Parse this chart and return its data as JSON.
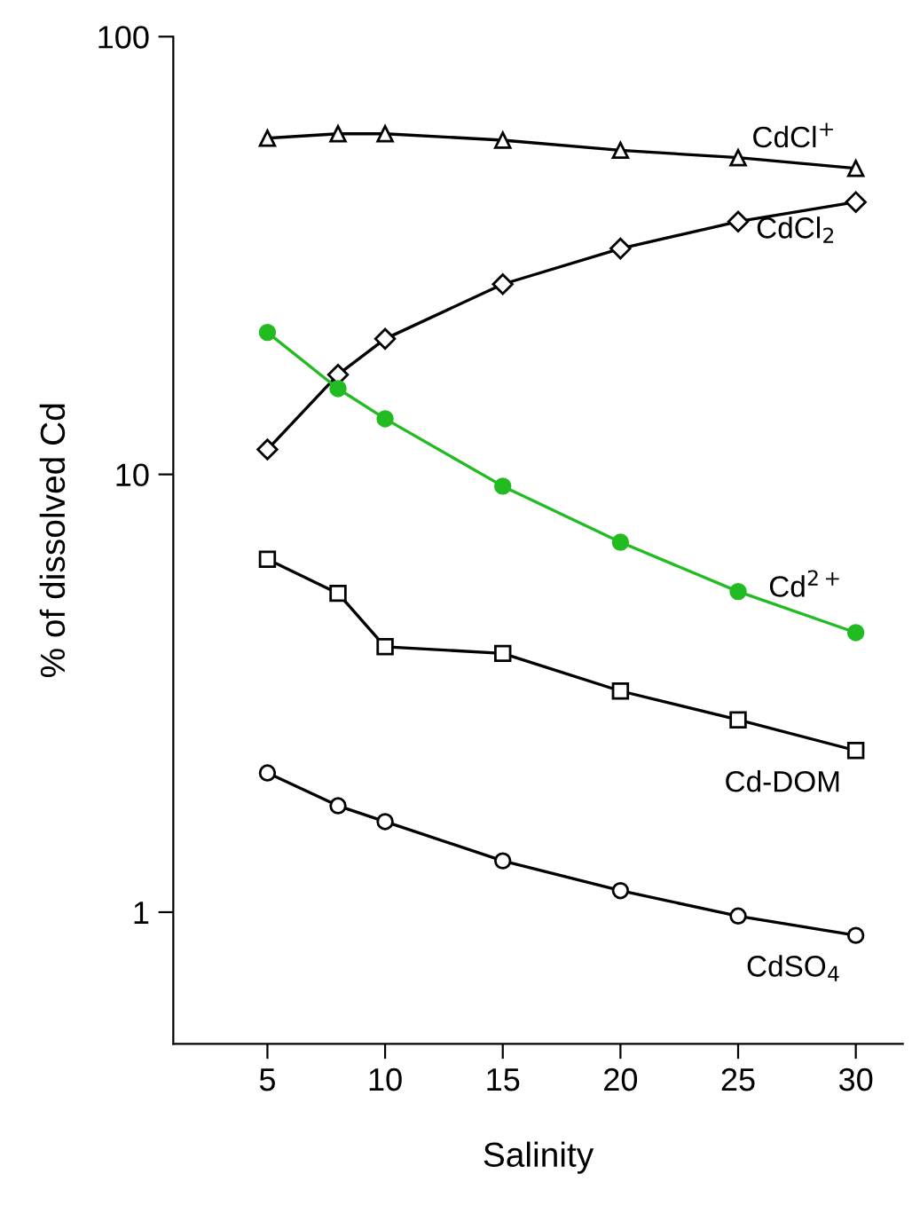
{
  "chart_data": {
    "type": "line",
    "xlabel": "Salinity",
    "ylabel": "% of dissolved Cd",
    "x": [
      5,
      8,
      10,
      15,
      20,
      25,
      30
    ],
    "series": [
      {
        "name": "CdCl$^{+}$",
        "color": "#000000",
        "marker": "triangle",
        "values": [
          58.6,
          60,
          60,
          58,
          55,
          52.9,
          50
        ]
      },
      {
        "name": "CdCl$_{2}$",
        "color": "#000000",
        "marker": "diamond",
        "values": [
          11.4,
          16.9,
          20.4,
          27.2,
          32.8,
          37.8,
          41.9
        ]
      },
      {
        "name": "Cd$^{2+}$",
        "color": "#22bb22",
        "marker": "circle",
        "values": [
          21.1,
          15.7,
          13.4,
          9.4,
          7.0,
          5.4,
          4.35
        ]
      },
      {
        "name": "Cd-DOM",
        "color": "#000000",
        "marker": "square",
        "values": [
          6.4,
          5.35,
          4.04,
          3.9,
          3.2,
          2.75,
          2.34
        ]
      },
      {
        "name": "CdSO$_{4}$",
        "color": "#000000",
        "marker": "circle",
        "values": [
          2.08,
          1.75,
          1.61,
          1.31,
          1.12,
          0.98,
          0.885
        ]
      }
    ],
    "log": "y",
    "xlim": [
      1,
      32
    ],
    "ylim": [
      0.5,
      100
    ],
    "xticks": [
      5,
      10,
      15,
      20,
      25,
      30
    ],
    "yticks": [
      1,
      10,
      100
    ],
    "grid": false,
    "legend": false,
    "line_style": "solid"
  }
}
